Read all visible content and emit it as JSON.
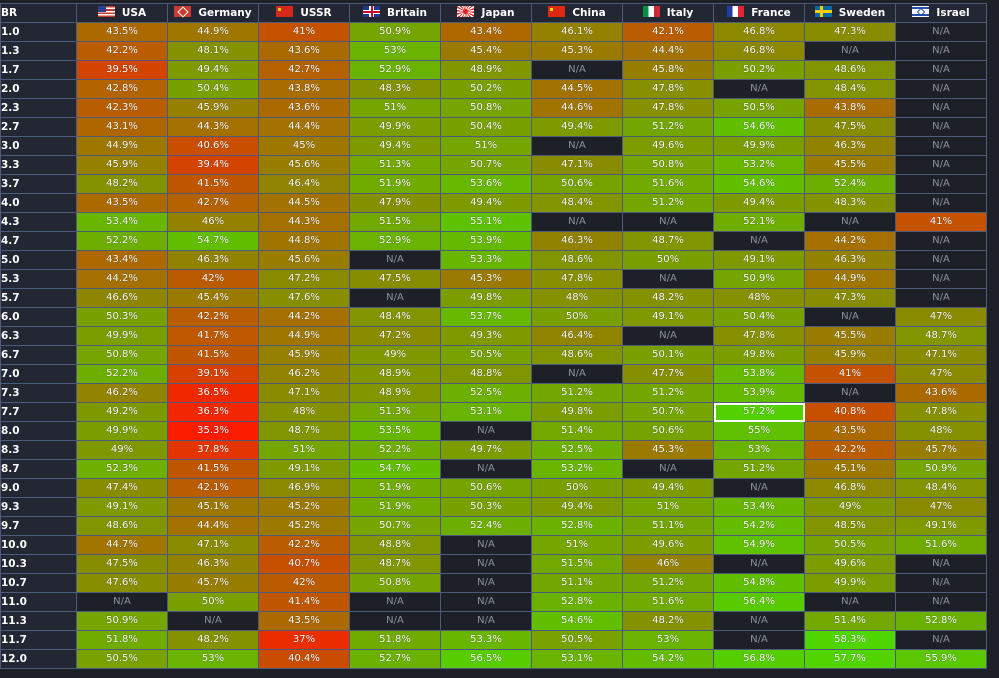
{
  "table": {
    "corner_label": "BR",
    "na_label": "N/A",
    "selected_cell": {
      "br": "7.7",
      "nation": "France"
    },
    "color_scale": {
      "low": "#ff1a00",
      "mid": "#8a8a00",
      "high": "#4fd600",
      "na_bg": "#1d2127"
    },
    "nations": [
      {
        "name": "USA",
        "flag": "usa-flag-icon"
      },
      {
        "name": "Germany",
        "flag": "germany-flag-icon"
      },
      {
        "name": "USSR",
        "flag": "ussr-flag-icon"
      },
      {
        "name": "Britain",
        "flag": "britain-flag-icon"
      },
      {
        "name": "Japan",
        "flag": "japan-flag-icon"
      },
      {
        "name": "China",
        "flag": "china-flag-icon"
      },
      {
        "name": "Italy",
        "flag": "italy-flag-icon"
      },
      {
        "name": "France",
        "flag": "france-flag-icon"
      },
      {
        "name": "Sweden",
        "flag": "sweden-flag-icon"
      },
      {
        "name": "Israel",
        "flag": "israel-flag-icon"
      }
    ],
    "rows": [
      {
        "br": "1.0",
        "values": [
          "43.5%",
          "44.9%",
          "41%",
          "50.9%",
          "43.4%",
          "46.1%",
          "42.1%",
          "46.8%",
          "47.3%",
          "N/A"
        ]
      },
      {
        "br": "1.3",
        "values": [
          "42.2%",
          "48.1%",
          "43.6%",
          "53%",
          "45.4%",
          "45.3%",
          "44.4%",
          "46.8%",
          "N/A",
          "N/A"
        ]
      },
      {
        "br": "1.7",
        "values": [
          "39.5%",
          "49.4%",
          "42.7%",
          "52.9%",
          "48.9%",
          "N/A",
          "45.8%",
          "50.2%",
          "48.6%",
          "N/A"
        ]
      },
      {
        "br": "2.0",
        "values": [
          "42.8%",
          "50.4%",
          "43.8%",
          "48.3%",
          "50.2%",
          "44.5%",
          "47.8%",
          "N/A",
          "48.4%",
          "N/A"
        ]
      },
      {
        "br": "2.3",
        "values": [
          "42.3%",
          "45.9%",
          "43.6%",
          "51%",
          "50.8%",
          "44.6%",
          "47.8%",
          "50.5%",
          "43.8%",
          "N/A"
        ]
      },
      {
        "br": "2.7",
        "values": [
          "43.1%",
          "44.3%",
          "44.4%",
          "49.9%",
          "50.4%",
          "49.4%",
          "51.2%",
          "54.6%",
          "47.5%",
          "N/A"
        ]
      },
      {
        "br": "3.0",
        "values": [
          "44.9%",
          "40.6%",
          "45%",
          "49.4%",
          "51%",
          "N/A",
          "49.6%",
          "49.9%",
          "46.3%",
          "N/A"
        ]
      },
      {
        "br": "3.3",
        "values": [
          "45.9%",
          "39.4%",
          "45.6%",
          "51.3%",
          "50.7%",
          "47.1%",
          "50.8%",
          "53.2%",
          "45.5%",
          "N/A"
        ]
      },
      {
        "br": "3.7",
        "values": [
          "48.2%",
          "41.5%",
          "46.4%",
          "51.9%",
          "53.6%",
          "50.6%",
          "51.6%",
          "54.6%",
          "52.4%",
          "N/A"
        ]
      },
      {
        "br": "4.0",
        "values": [
          "43.5%",
          "42.7%",
          "44.5%",
          "47.9%",
          "49.4%",
          "48.4%",
          "51.2%",
          "49.4%",
          "48.3%",
          "N/A"
        ]
      },
      {
        "br": "4.3",
        "values": [
          "53.4%",
          "46%",
          "44.3%",
          "51.5%",
          "55.1%",
          "N/A",
          "N/A",
          "52.1%",
          "N/A",
          "41%"
        ]
      },
      {
        "br": "4.7",
        "values": [
          "52.2%",
          "54.7%",
          "44.8%",
          "52.9%",
          "53.9%",
          "46.3%",
          "48.7%",
          "N/A",
          "44.2%",
          "N/A"
        ]
      },
      {
        "br": "5.0",
        "values": [
          "43.4%",
          "46.3%",
          "45.6%",
          "N/A",
          "53.3%",
          "48.6%",
          "50%",
          "49.1%",
          "46.3%",
          "N/A"
        ]
      },
      {
        "br": "5.3",
        "values": [
          "44.2%",
          "42%",
          "47.2%",
          "47.5%",
          "45.3%",
          "47.8%",
          "N/A",
          "50.9%",
          "44.9%",
          "N/A"
        ]
      },
      {
        "br": "5.7",
        "values": [
          "46.6%",
          "45.4%",
          "47.6%",
          "N/A",
          "49.8%",
          "48%",
          "48.2%",
          "48%",
          "47.3%",
          "N/A"
        ]
      },
      {
        "br": "6.0",
        "values": [
          "50.3%",
          "42.2%",
          "44.2%",
          "48.4%",
          "53.7%",
          "50%",
          "49.1%",
          "50.4%",
          "N/A",
          "47%"
        ]
      },
      {
        "br": "6.3",
        "values": [
          "49.9%",
          "41.7%",
          "44.9%",
          "47.2%",
          "49.3%",
          "46.4%",
          "N/A",
          "47.8%",
          "45.5%",
          "48.7%"
        ]
      },
      {
        "br": "6.7",
        "values": [
          "50.8%",
          "41.5%",
          "45.9%",
          "49%",
          "50.5%",
          "48.6%",
          "50.1%",
          "49.8%",
          "45.9%",
          "47.1%"
        ]
      },
      {
        "br": "7.0",
        "values": [
          "52.2%",
          "39.1%",
          "46.2%",
          "48.9%",
          "48.8%",
          "N/A",
          "47.7%",
          "53.8%",
          "41%",
          "47%"
        ]
      },
      {
        "br": "7.3",
        "values": [
          "46.2%",
          "36.5%",
          "47.1%",
          "48.9%",
          "52.5%",
          "51.2%",
          "51.2%",
          "53.9%",
          "N/A",
          "43.6%"
        ]
      },
      {
        "br": "7.7",
        "values": [
          "49.2%",
          "36.3%",
          "48%",
          "51.3%",
          "53.1%",
          "49.8%",
          "50.7%",
          "57.2%",
          "40.8%",
          "47.8%"
        ]
      },
      {
        "br": "8.0",
        "values": [
          "49.9%",
          "35.3%",
          "48.7%",
          "53.5%",
          "N/A",
          "51.4%",
          "50.6%",
          "55%",
          "43.5%",
          "48%"
        ]
      },
      {
        "br": "8.3",
        "values": [
          "49%",
          "37.8%",
          "51%",
          "52.2%",
          "49.7%",
          "52.5%",
          "45.3%",
          "53%",
          "42.2%",
          "45.7%"
        ]
      },
      {
        "br": "8.7",
        "values": [
          "52.3%",
          "41.5%",
          "49.1%",
          "54.7%",
          "N/A",
          "53.2%",
          "N/A",
          "51.2%",
          "45.1%",
          "50.9%"
        ]
      },
      {
        "br": "9.0",
        "values": [
          "47.4%",
          "42.1%",
          "46.9%",
          "51.9%",
          "50.6%",
          "50%",
          "49.4%",
          "N/A",
          "46.8%",
          "48.4%"
        ]
      },
      {
        "br": "9.3",
        "values": [
          "49.1%",
          "45.1%",
          "45.2%",
          "51.9%",
          "50.3%",
          "49.4%",
          "51%",
          "53.4%",
          "49%",
          "47%"
        ]
      },
      {
        "br": "9.7",
        "values": [
          "48.6%",
          "44.4%",
          "45.2%",
          "50.7%",
          "52.4%",
          "52.8%",
          "51.1%",
          "54.2%",
          "48.5%",
          "49.1%"
        ]
      },
      {
        "br": "10.0",
        "values": [
          "44.7%",
          "47.1%",
          "42.2%",
          "48.8%",
          "N/A",
          "51%",
          "49.6%",
          "54.9%",
          "50.5%",
          "51.6%"
        ]
      },
      {
        "br": "10.3",
        "values": [
          "47.5%",
          "46.3%",
          "40.7%",
          "48.7%",
          "N/A",
          "51.5%",
          "46%",
          "N/A",
          "49.6%",
          "N/A"
        ]
      },
      {
        "br": "10.7",
        "values": [
          "47.6%",
          "45.7%",
          "42%",
          "50.8%",
          "N/A",
          "51.1%",
          "51.2%",
          "54.8%",
          "49.9%",
          "N/A"
        ]
      },
      {
        "br": "11.0",
        "values": [
          "N/A",
          "50%",
          "41.4%",
          "N/A",
          "N/A",
          "52.8%",
          "51.6%",
          "56.4%",
          "N/A",
          "N/A"
        ]
      },
      {
        "br": "11.3",
        "values": [
          "50.9%",
          "N/A",
          "43.5%",
          "N/A",
          "N/A",
          "54.6%",
          "48.2%",
          "N/A",
          "51.4%",
          "52.8%"
        ]
      },
      {
        "br": "11.7",
        "values": [
          "51.8%",
          "48.2%",
          "37%",
          "51.8%",
          "53.3%",
          "50.5%",
          "53%",
          "N/A",
          "58.3%",
          "N/A"
        ]
      },
      {
        "br": "12.0",
        "values": [
          "50.5%",
          "53%",
          "40.4%",
          "52.7%",
          "56.5%",
          "53.1%",
          "54.2%",
          "56.8%",
          "57.7%",
          "55.9%"
        ]
      }
    ]
  }
}
